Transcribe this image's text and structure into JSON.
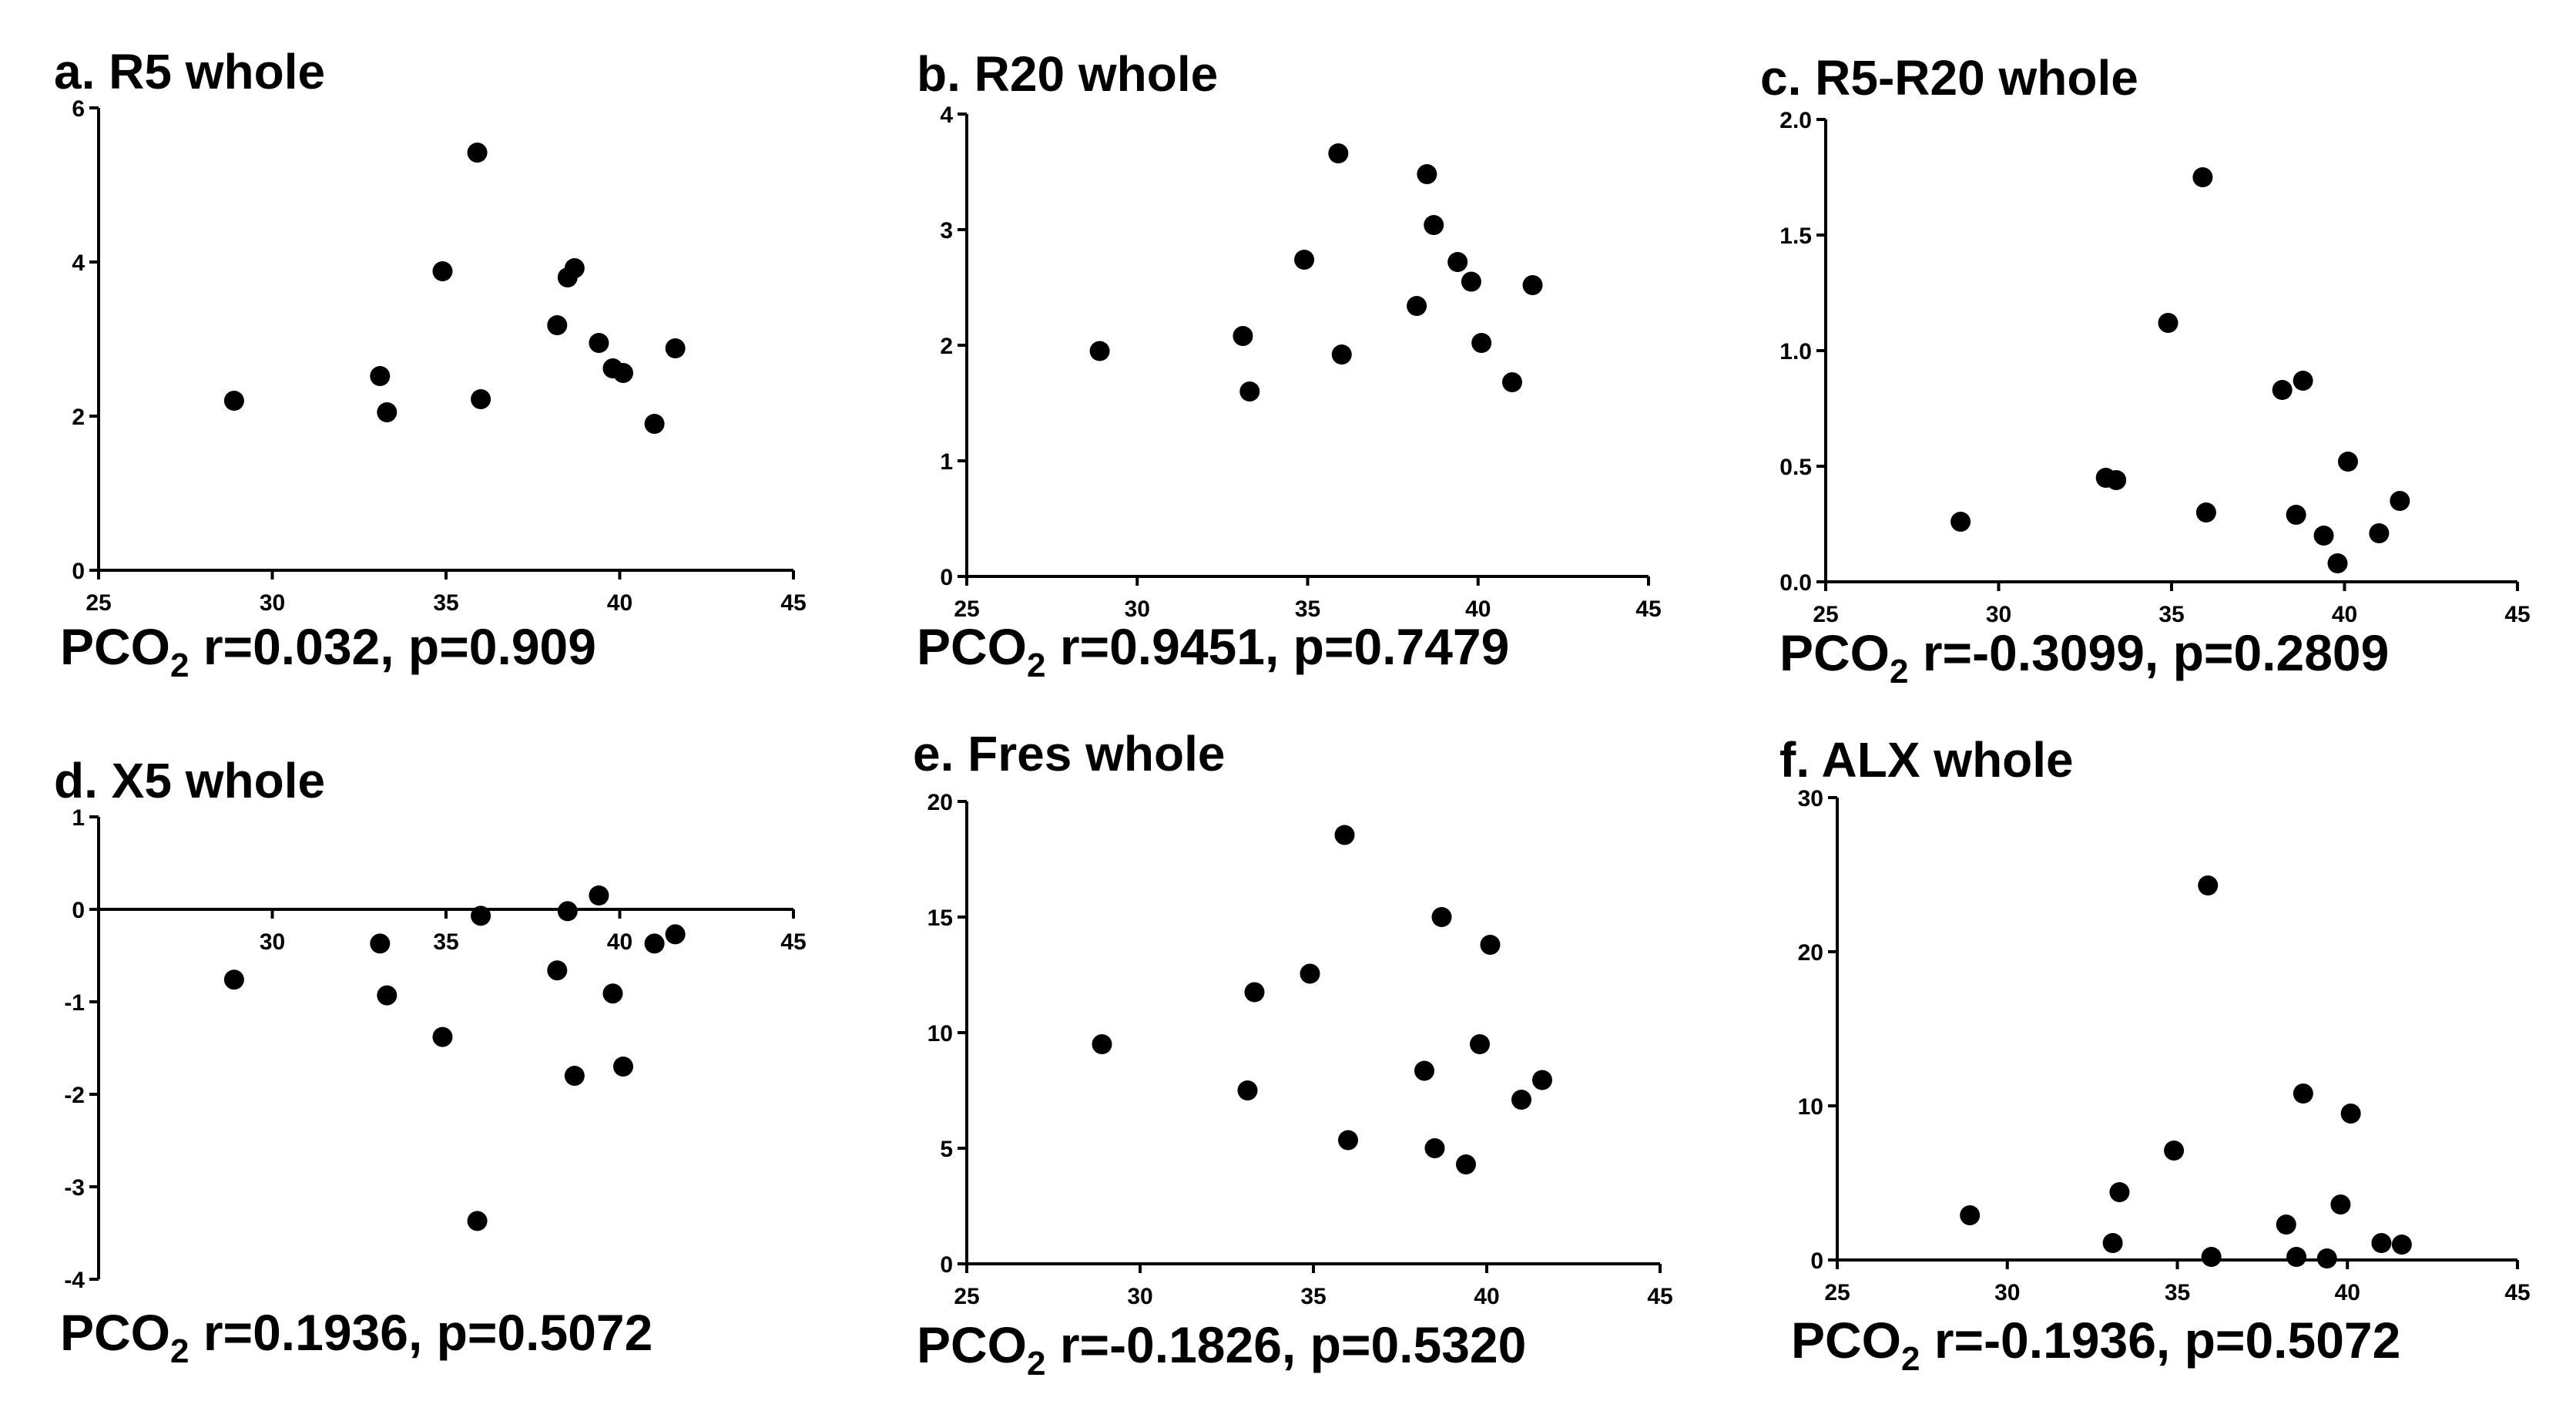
{
  "chart_data": [
    {
      "id": "a",
      "type": "scatter",
      "title": "a. R5 whole",
      "xlim": [
        25,
        45
      ],
      "xticks": [
        25,
        30,
        35,
        40,
        45
      ],
      "ylim": [
        0,
        6
      ],
      "yticks": [
        0,
        2,
        4,
        6
      ],
      "stat_prefix": "PCO",
      "stat_sub": "2",
      "stat_text": " r=0.032, p=0.909",
      "points": [
        [
          28.9,
          2.2
        ],
        [
          33.1,
          2.52
        ],
        [
          33.3,
          2.05
        ],
        [
          34.9,
          3.88
        ],
        [
          35.9,
          5.42
        ],
        [
          36.0,
          2.22
        ],
        [
          38.2,
          3.18
        ],
        [
          38.5,
          3.8
        ],
        [
          38.7,
          3.92
        ],
        [
          39.4,
          2.95
        ],
        [
          39.8,
          2.62
        ],
        [
          40.1,
          2.56
        ],
        [
          41.0,
          1.9
        ],
        [
          41.6,
          2.88
        ]
      ]
    },
    {
      "id": "b",
      "type": "scatter",
      "title": "b. R20 whole",
      "xlim": [
        25,
        45
      ],
      "xticks": [
        25,
        30,
        35,
        40,
        45
      ],
      "ylim": [
        0,
        4
      ],
      "yticks": [
        0,
        1,
        2,
        3,
        4
      ],
      "stat_prefix": "PCO",
      "stat_sub": "2",
      "stat_text": " r=0.9451, p=0.7479",
      "points": [
        [
          28.9,
          1.95
        ],
        [
          33.1,
          2.08
        ],
        [
          33.3,
          1.6
        ],
        [
          34.9,
          2.74
        ],
        [
          35.9,
          3.66
        ],
        [
          36.0,
          1.92
        ],
        [
          38.2,
          2.34
        ],
        [
          38.5,
          3.48
        ],
        [
          38.7,
          3.04
        ],
        [
          39.4,
          2.72
        ],
        [
          39.8,
          2.55
        ],
        [
          40.1,
          2.02
        ],
        [
          41.0,
          1.68
        ],
        [
          41.6,
          2.52
        ]
      ]
    },
    {
      "id": "c",
      "type": "scatter",
      "title": "c. R5-R20 whole",
      "xlim": [
        25,
        45
      ],
      "xticks": [
        25,
        30,
        35,
        40,
        45
      ],
      "ylim": [
        0,
        2.0
      ],
      "yticks": [
        0.0,
        0.5,
        1.0,
        1.5,
        2.0
      ],
      "ytick_labels": [
        "0.0",
        "0.5",
        "1.0",
        "1.5",
        "2.0"
      ],
      "stat_prefix": "PCO",
      "stat_sub": "2",
      "stat_text": " r=-0.3099, p=0.2809",
      "points": [
        [
          28.9,
          0.26
        ],
        [
          33.1,
          0.45
        ],
        [
          33.4,
          0.44
        ],
        [
          34.9,
          1.12
        ],
        [
          35.9,
          1.75
        ],
        [
          36.0,
          0.3
        ],
        [
          38.2,
          0.83
        ],
        [
          38.6,
          0.29
        ],
        [
          38.8,
          0.87
        ],
        [
          39.4,
          0.2
        ],
        [
          39.8,
          0.08
        ],
        [
          40.1,
          0.52
        ],
        [
          41.0,
          0.21
        ],
        [
          41.6,
          0.35
        ]
      ]
    },
    {
      "id": "d",
      "type": "scatter",
      "title": "d. X5 whole",
      "xlim": [
        25,
        45
      ],
      "xticks": [
        30,
        35,
        40,
        45
      ],
      "ylim": [
        -4,
        1
      ],
      "yticks": [
        -4,
        -3,
        -2,
        -1,
        0,
        1
      ],
      "x_axis_at_zero": true,
      "stat_prefix": "PCO",
      "stat_sub": "2",
      "stat_text": " r=0.1936, p=0.5072",
      "points": [
        [
          28.9,
          -0.76
        ],
        [
          33.1,
          -0.37
        ],
        [
          33.3,
          -0.93
        ],
        [
          34.9,
          -1.38
        ],
        [
          35.9,
          -3.37
        ],
        [
          36.0,
          -0.07
        ],
        [
          38.2,
          -0.66
        ],
        [
          38.5,
          -0.02
        ],
        [
          38.7,
          -1.8
        ],
        [
          39.4,
          0.15
        ],
        [
          39.8,
          -0.91
        ],
        [
          40.1,
          -1.7
        ],
        [
          41.0,
          -0.37
        ],
        [
          41.6,
          -0.27
        ]
      ]
    },
    {
      "id": "e",
      "type": "scatter",
      "title": "e. Fres whole",
      "xlim": [
        25,
        45
      ],
      "xticks": [
        25,
        30,
        35,
        40,
        45
      ],
      "ylim": [
        0,
        20
      ],
      "yticks": [
        0,
        5,
        10,
        15,
        20
      ],
      "stat_prefix": "PCO",
      "stat_sub": "2",
      "stat_text": " r=-0.1826, p=0.5320",
      "points": [
        [
          28.9,
          9.5
        ],
        [
          33.1,
          7.5
        ],
        [
          33.3,
          11.75
        ],
        [
          34.9,
          12.55
        ],
        [
          35.9,
          18.55
        ],
        [
          36.0,
          5.35
        ],
        [
          38.2,
          8.35
        ],
        [
          38.5,
          5.0
        ],
        [
          38.7,
          15.0
        ],
        [
          39.4,
          4.3
        ],
        [
          39.8,
          9.5
        ],
        [
          40.1,
          13.8
        ],
        [
          41.0,
          7.1
        ],
        [
          41.6,
          7.95
        ]
      ]
    },
    {
      "id": "f",
      "type": "scatter",
      "title": "f. ALX whole",
      "xlim": [
        25,
        45
      ],
      "xticks": [
        25,
        30,
        35,
        40,
        45
      ],
      "ylim": [
        0,
        30
      ],
      "yticks": [
        0,
        10,
        20,
        30
      ],
      "stat_prefix": "PCO",
      "stat_sub": "2",
      "stat_text": " r=-0.1936, p=0.5072",
      "points": [
        [
          28.9,
          2.9
        ],
        [
          33.1,
          1.1
        ],
        [
          33.3,
          4.4
        ],
        [
          34.9,
          7.1
        ],
        [
          35.9,
          24.3
        ],
        [
          36.0,
          0.2
        ],
        [
          38.2,
          2.3
        ],
        [
          38.5,
          0.2
        ],
        [
          38.7,
          10.8
        ],
        [
          39.4,
          0.1
        ],
        [
          39.8,
          3.6
        ],
        [
          40.1,
          9.5
        ],
        [
          41.0,
          1.1
        ],
        [
          41.6,
          1.0
        ]
      ]
    }
  ]
}
